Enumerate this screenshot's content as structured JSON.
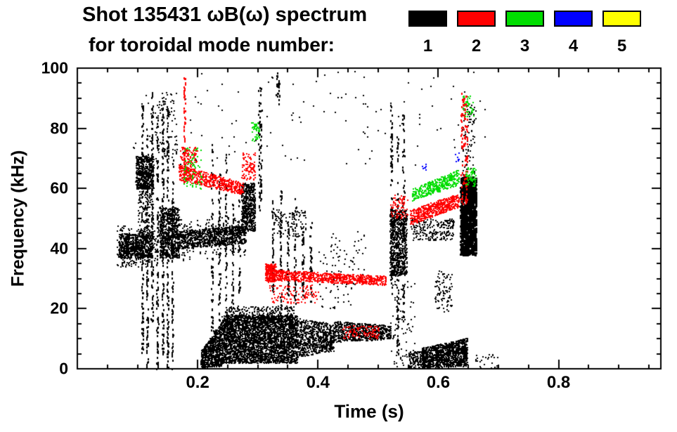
{
  "chart_data": {
    "type": "scatter",
    "title": "Shot 135431 ωB(ω) spectrum",
    "subtitle": "for toroidal mode number:",
    "xlabel": "Time (s)",
    "ylabel": "Frequency (kHz)",
    "xlim": [
      0,
      0.97
    ],
    "ylim": [
      0,
      100
    ],
    "xticks": [
      0.2,
      0.4,
      0.6,
      0.8
    ],
    "yticks": [
      0,
      20,
      40,
      60,
      80,
      100
    ],
    "xtick_major_step": 0.2,
    "xtick_minor_step": 0.05,
    "ytick_major_step": 20,
    "ytick_minor_step": 5,
    "grid": false,
    "legend": {
      "position": "top-right",
      "labels": [
        "1",
        "2",
        "3",
        "4",
        "5"
      ],
      "colors": [
        "#000000",
        "#ff0000",
        "#00dd00",
        "#0000ff",
        "#ffff00"
      ]
    },
    "clusters": [
      {
        "m": 1,
        "t": [
          0.068,
          0.125
        ],
        "f": [
          37,
          45
        ],
        "n": 700
      },
      {
        "m": 1,
        "t": [
          0.065,
          0.13
        ],
        "f": [
          34,
          48
        ],
        "n": 200
      },
      {
        "m": 1,
        "t": [
          0.096,
          0.126
        ],
        "f": [
          60,
          71
        ],
        "n": 450
      },
      {
        "m": 1,
        "t": [
          0.1,
          0.126
        ],
        "f": [
          45,
          62
        ],
        "n": 150
      },
      {
        "m": 1,
        "t": [
          0.106,
          0.109
        ],
        "f": [
          5,
          88
        ],
        "n": 110,
        "s": [
          2,
          3
        ]
      },
      {
        "m": 1,
        "t": [
          0.114,
          0.117
        ],
        "f": [
          0,
          80
        ],
        "n": 100,
        "s": [
          2,
          3
        ]
      },
      {
        "m": 1,
        "t": [
          0.122,
          0.125
        ],
        "f": [
          15,
          92
        ],
        "n": 110,
        "s": [
          2,
          3
        ]
      },
      {
        "m": 1,
        "t": [
          0.131,
          0.134
        ],
        "f": [
          0,
          85
        ],
        "n": 110,
        "s": [
          2,
          3
        ]
      },
      {
        "m": 1,
        "t": [
          0.14,
          0.143
        ],
        "f": [
          5,
          90
        ],
        "n": 120,
        "s": [
          2,
          3
        ]
      },
      {
        "m": 1,
        "t": [
          0.148,
          0.151
        ],
        "f": [
          0,
          88
        ],
        "n": 120,
        "s": [
          2,
          3
        ]
      },
      {
        "m": 1,
        "t": [
          0.156,
          0.159
        ],
        "f": [
          0,
          70
        ],
        "n": 90,
        "s": [
          2,
          3
        ]
      },
      {
        "m": 1,
        "t": [
          0.136,
          0.168
        ],
        "f": [
          37,
          54
        ],
        "n": 700
      },
      {
        "m": 1,
        "t": [
          0.128,
          0.165
        ],
        "f": [
          70,
          93
        ],
        "n": 90
      },
      {
        "m": 1,
        "t": [
          0.168,
          0.28
        ],
        "f": [
          40,
          46
        ],
        "f2": [
          42,
          48
        ],
        "n": 800
      },
      {
        "m": 1,
        "t": [
          0.168,
          0.28
        ],
        "f": [
          36,
          50
        ],
        "f2": [
          38,
          52
        ],
        "n": 200
      },
      {
        "m": 1,
        "t": [
          0.222,
          0.225
        ],
        "f": [
          2,
          75
        ],
        "n": 70,
        "s": [
          2,
          3
        ]
      },
      {
        "m": 1,
        "t": [
          0.234,
          0.237
        ],
        "f": [
          5,
          65
        ],
        "n": 60,
        "s": [
          2,
          3
        ]
      },
      {
        "m": 1,
        "t": [
          0.245,
          0.248
        ],
        "f": [
          10,
          72
        ],
        "n": 60,
        "s": [
          2,
          3
        ]
      },
      {
        "m": 1,
        "t": [
          0.256,
          0.259
        ],
        "f": [
          8,
          55
        ],
        "n": 50,
        "s": [
          2,
          3
        ]
      },
      {
        "m": 1,
        "t": [
          0.267,
          0.27
        ],
        "f": [
          25,
          60
        ],
        "n": 40,
        "s": [
          2,
          3
        ]
      },
      {
        "m": 1,
        "t": [
          0.272,
          0.295
        ],
        "f": [
          46,
          62
        ],
        "n": 550
      },
      {
        "m": 1,
        "t": [
          0.3,
          0.306
        ],
        "f": [
          52,
          94
        ],
        "n": 70,
        "s": [
          2,
          3
        ]
      },
      {
        "m": 1,
        "t": [
          0.33,
          0.336
        ],
        "f": [
          88,
          99
        ],
        "n": 25,
        "s": [
          2,
          3
        ]
      },
      {
        "m": 1,
        "t": [
          0.205,
          0.24
        ],
        "f": [
          0.5,
          6
        ],
        "f2": [
          1,
          16
        ],
        "n": 700
      },
      {
        "m": 1,
        "t": [
          0.24,
          0.365
        ],
        "f": [
          2,
          18
        ],
        "n": 3200
      },
      {
        "m": 1,
        "t": [
          0.245,
          0.36
        ],
        "f": [
          16,
          21
        ],
        "n": 280
      },
      {
        "m": 1,
        "t": [
          0.365,
          0.425
        ],
        "f": [
          4,
          17
        ],
        "f2": [
          6,
          15
        ],
        "n": 700
      },
      {
        "m": 1,
        "t": [
          0.425,
          0.52
        ],
        "f": [
          9,
          16
        ],
        "f2": [
          10,
          14.5
        ],
        "n": 650
      },
      {
        "m": 1,
        "t": [
          0.323,
          0.326
        ],
        "f": [
          25,
          57
        ],
        "n": 45,
        "s": [
          2,
          3
        ]
      },
      {
        "m": 1,
        "t": [
          0.336,
          0.339
        ],
        "f": [
          20,
          60
        ],
        "n": 45,
        "s": [
          2,
          3
        ]
      },
      {
        "m": 1,
        "t": [
          0.348,
          0.351
        ],
        "f": [
          24,
          50
        ],
        "n": 40,
        "s": [
          2,
          3
        ]
      },
      {
        "m": 1,
        "t": [
          0.36,
          0.363
        ],
        "f": [
          20,
          58
        ],
        "n": 40,
        "s": [
          2,
          3
        ]
      },
      {
        "m": 1,
        "t": [
          0.373,
          0.376
        ],
        "f": [
          24,
          46
        ],
        "n": 35,
        "s": [
          2,
          3
        ]
      },
      {
        "m": 1,
        "t": [
          0.386,
          0.389
        ],
        "f": [
          22,
          50
        ],
        "n": 35,
        "s": [
          2,
          3
        ]
      },
      {
        "m": 1,
        "t": [
          0.325,
          0.38
        ],
        "f": [
          44,
          53
        ],
        "n": 110
      },
      {
        "m": 1,
        "t": [
          0.4,
          0.46
        ],
        "f": [
          20,
          40
        ],
        "n": 60
      },
      {
        "m": 1,
        "t": [
          0.42,
          0.48
        ],
        "f": [
          28,
          46
        ],
        "n": 40
      },
      {
        "m": 1,
        "t": [
          0.519,
          0.547
        ],
        "f": [
          31,
          53
        ],
        "n": 700
      },
      {
        "m": 1,
        "t": [
          0.52,
          0.523
        ],
        "f": [
          25,
          88
        ],
        "n": 80,
        "s": [
          2,
          3
        ]
      },
      {
        "m": 1,
        "t": [
          0.53,
          0.533
        ],
        "f": [
          5,
          78
        ],
        "n": 70,
        "s": [
          2,
          3
        ]
      },
      {
        "m": 1,
        "t": [
          0.54,
          0.543
        ],
        "f": [
          15,
          85
        ],
        "n": 70,
        "s": [
          2,
          3
        ]
      },
      {
        "m": 1,
        "t": [
          0.52,
          0.56
        ],
        "f": [
          1,
          30
        ],
        "n": 80
      },
      {
        "m": 1,
        "t": [
          0.553,
          0.625
        ],
        "f": [
          43,
          50
        ],
        "n": 220
      },
      {
        "m": 1,
        "t": [
          0.572,
          0.648
        ],
        "f": [
          0.5,
          7
        ],
        "f2": [
          1,
          10.5
        ],
        "n": 1100
      },
      {
        "m": 1,
        "t": [
          0.55,
          0.575
        ],
        "f": [
          0.5,
          6
        ],
        "n": 120
      },
      {
        "m": 1,
        "t": [
          0.594,
          0.622
        ],
        "f": [
          19,
          33
        ],
        "n": 90
      },
      {
        "m": 1,
        "t": [
          0.636,
          0.662
        ],
        "f": [
          38,
          64
        ],
        "n": 1000,
        "s": [
          3,
          3
        ]
      },
      {
        "m": 1,
        "t": [
          0.638,
          0.66
        ],
        "f": [
          64,
          88
        ],
        "n": 90
      },
      {
        "m": 1,
        "t": [
          0.09,
          0.68
        ],
        "f": [
          68,
          99
        ],
        "n": 130
      },
      {
        "m": 1,
        "t": [
          0.66,
          0.7
        ],
        "f": [
          0,
          5
        ],
        "n": 25
      },
      {
        "m": 2,
        "t": [
          0.168,
          0.275
        ],
        "f": [
          63,
          68
        ],
        "f2": [
          58,
          62
        ],
        "n": 550
      },
      {
        "m": 2,
        "t": [
          0.17,
          0.2
        ],
        "f": [
          66,
          74
        ],
        "n": 90
      },
      {
        "m": 2,
        "t": [
          0.176,
          0.179
        ],
        "f": [
          62,
          98
        ],
        "n": 60,
        "s": [
          2,
          3
        ]
      },
      {
        "m": 2,
        "t": [
          0.272,
          0.295
        ],
        "f": [
          63,
          72
        ],
        "n": 90
      },
      {
        "m": 2,
        "t": [
          0.312,
          0.33
        ],
        "f": [
          29,
          35
        ],
        "n": 260
      },
      {
        "m": 2,
        "t": [
          0.33,
          0.512
        ],
        "f": [
          29.5,
          33
        ],
        "f2": [
          28,
          31
        ],
        "n": 800
      },
      {
        "m": 2,
        "t": [
          0.318,
          0.4
        ],
        "f": [
          22,
          28
        ],
        "n": 110
      },
      {
        "m": 2,
        "t": [
          0.44,
          0.5
        ],
        "f": [
          10,
          14.5
        ],
        "n": 90
      },
      {
        "m": 2,
        "t": [
          0.52,
          0.548
        ],
        "f": [
          50,
          58
        ],
        "n": 70
      },
      {
        "m": 2,
        "t": [
          0.552,
          0.634
        ],
        "f": [
          48,
          53
        ],
        "f2": [
          54,
          58.5
        ],
        "n": 520
      },
      {
        "m": 2,
        "t": [
          0.637,
          0.648
        ],
        "f": [
          55,
          92
        ],
        "n": 110,
        "s": [
          2,
          3
        ]
      },
      {
        "m": 3,
        "t": [
          0.176,
          0.206
        ],
        "f": [
          60,
          74
        ],
        "n": 70
      },
      {
        "m": 3,
        "t": [
          0.288,
          0.302
        ],
        "f": [
          76,
          82
        ],
        "n": 45
      },
      {
        "m": 3,
        "t": [
          0.556,
          0.634
        ],
        "f": [
          56,
          60
        ],
        "f2": [
          61.5,
          66.5
        ],
        "n": 380
      },
      {
        "m": 3,
        "t": [
          0.64,
          0.658
        ],
        "f": [
          84,
          91
        ],
        "n": 40
      },
      {
        "m": 3,
        "t": [
          0.645,
          0.662
        ],
        "f": [
          61,
          67
        ],
        "n": 60
      },
      {
        "m": 4,
        "t": [
          0.57,
          0.58
        ],
        "f": [
          66,
          69
        ],
        "n": 8
      },
      {
        "m": 4,
        "t": [
          0.627,
          0.634
        ],
        "f": [
          69,
          72
        ],
        "n": 8
      }
    ]
  }
}
